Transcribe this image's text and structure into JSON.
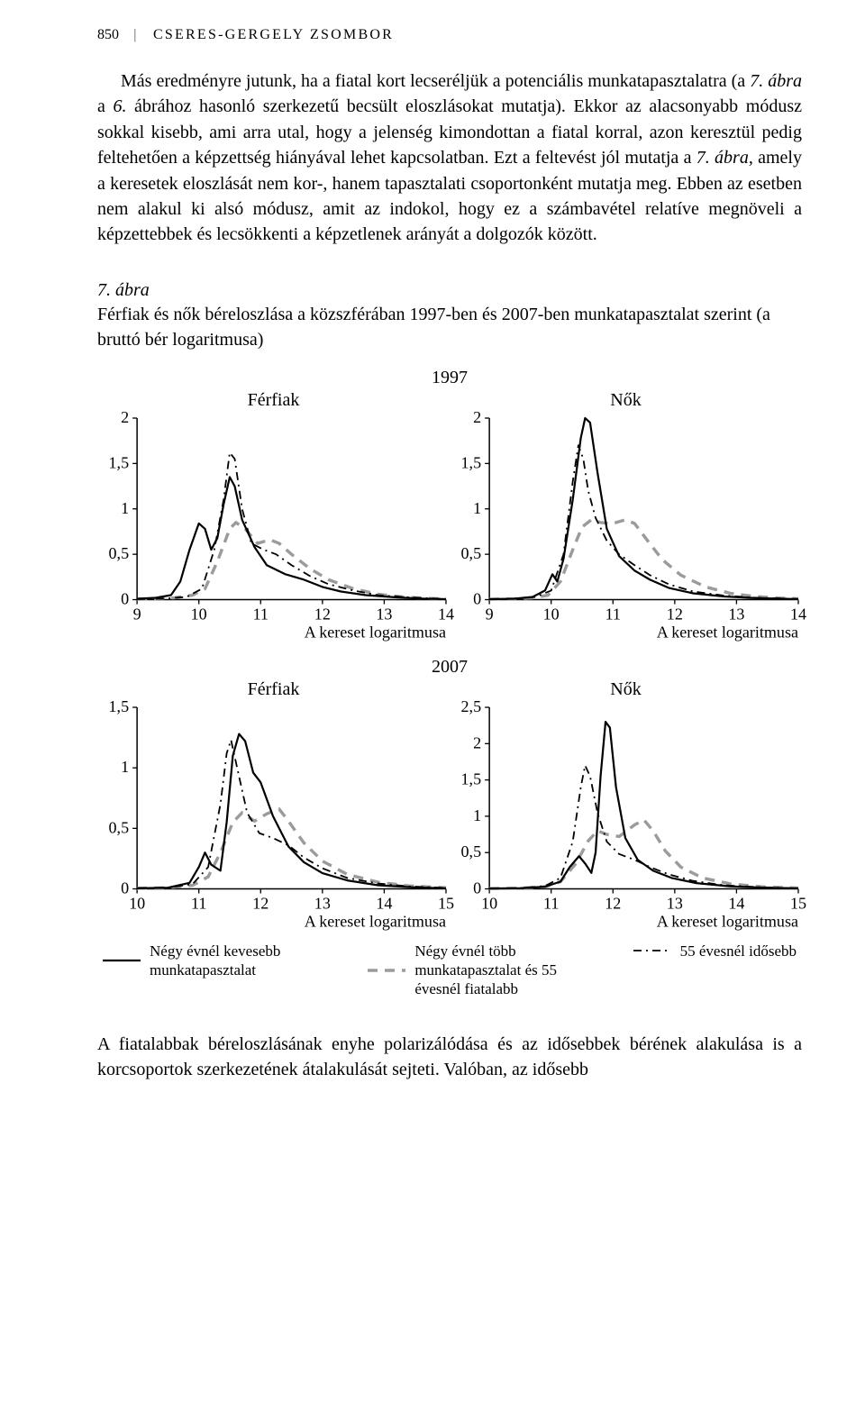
{
  "page": {
    "number": "850",
    "author": "CSERES-GERGELY ZSOMBOR"
  },
  "para1_a": "Más eredményre jutunk, ha a fiatal kort lecseréljük a potenciális munkatapasztalatra (a ",
  "para1_b": "7. ábra",
  "para1_c": " a ",
  "para1_d": "6.",
  "para1_e": " ábrához hasonló szerkezetű becsült eloszlásokat mutatja). Ekkor az alacsonyabb módusz sokkal kisebb, ami arra utal, hogy a jelenség kimondottan a fiatal korral, azon keresztül pedig feltehetően a képzettség hiányával lehet kapcsolatban. Ezt a feltevést jól mutatja a ",
  "para1_f": "7. ábra,",
  "para1_g": " amely a keresetek eloszlását nem kor-, hanem tapasztalati csoportonként mutatja meg. Ebben az esetben nem alakul ki alsó módusz, amit az indokol, hogy ez a számbavétel relatíve megnöveli a képzettebbek és lecsökkenti a képzetlenek arányát a dolgozók között.",
  "figure": {
    "caption_head": "7. ábra",
    "caption_body": "Férfiak és nők béreloszlása a közszférában 1997-ben és 2007-ben munkatapasztalat szerint (a bruttó bér logaritmusa)",
    "year1": "1997",
    "year2": "2007",
    "col_men": "Férfiak",
    "col_women": "Nők",
    "xlabel": "A kereset logaritmusa",
    "style": {
      "axis_color": "#000000",
      "tick_color": "#000000",
      "tick_font": 18,
      "series_solid": {
        "color": "#000000",
        "width": 2.2,
        "dash": ""
      },
      "series_dash": {
        "color": "#9b9b9b",
        "width": 3.4,
        "dash": "11,8"
      },
      "series_dashdot": {
        "color": "#000000",
        "width": 1.8,
        "dash": "9,5,2,5"
      }
    },
    "panels": {
      "men1997": {
        "xlim": [
          9,
          14
        ],
        "xticks": [
          9,
          10,
          11,
          12,
          13,
          14
        ],
        "ylim": [
          0,
          2.0
        ],
        "yticks": [
          0,
          0.5,
          1.0,
          1.5,
          2.0
        ],
        "solid": [
          [
            9.0,
            0.01
          ],
          [
            9.3,
            0.02
          ],
          [
            9.55,
            0.05
          ],
          [
            9.7,
            0.2
          ],
          [
            9.85,
            0.55
          ],
          [
            10.0,
            0.84
          ],
          [
            10.1,
            0.78
          ],
          [
            10.2,
            0.55
          ],
          [
            10.3,
            0.68
          ],
          [
            10.4,
            1.05
          ],
          [
            10.5,
            1.35
          ],
          [
            10.58,
            1.25
          ],
          [
            10.7,
            0.88
          ],
          [
            10.9,
            0.58
          ],
          [
            11.1,
            0.38
          ],
          [
            11.4,
            0.28
          ],
          [
            11.7,
            0.22
          ],
          [
            12.0,
            0.14
          ],
          [
            12.3,
            0.09
          ],
          [
            12.7,
            0.05
          ],
          [
            13.2,
            0.025
          ],
          [
            13.6,
            0.012
          ],
          [
            14.0,
            0.005
          ]
        ],
        "dash": [
          [
            9.0,
            0.005
          ],
          [
            9.3,
            0.01
          ],
          [
            9.6,
            0.02
          ],
          [
            9.9,
            0.05
          ],
          [
            10.1,
            0.12
          ],
          [
            10.3,
            0.42
          ],
          [
            10.5,
            0.78
          ],
          [
            10.6,
            0.85
          ],
          [
            10.75,
            0.78
          ],
          [
            10.95,
            0.62
          ],
          [
            11.15,
            0.66
          ],
          [
            11.3,
            0.62
          ],
          [
            11.5,
            0.5
          ],
          [
            11.8,
            0.34
          ],
          [
            12.1,
            0.22
          ],
          [
            12.5,
            0.12
          ],
          [
            12.9,
            0.06
          ],
          [
            13.3,
            0.03
          ],
          [
            13.7,
            0.015
          ],
          [
            14.0,
            0.008
          ]
        ],
        "dashdot": [
          [
            9.0,
            0.005
          ],
          [
            9.4,
            0.01
          ],
          [
            9.8,
            0.03
          ],
          [
            10.05,
            0.12
          ],
          [
            10.25,
            0.55
          ],
          [
            10.4,
            1.1
          ],
          [
            10.5,
            1.62
          ],
          [
            10.58,
            1.55
          ],
          [
            10.7,
            1.0
          ],
          [
            10.85,
            0.62
          ],
          [
            11.05,
            0.55
          ],
          [
            11.25,
            0.5
          ],
          [
            11.5,
            0.38
          ],
          [
            11.8,
            0.26
          ],
          [
            12.1,
            0.17
          ],
          [
            12.5,
            0.1
          ],
          [
            12.9,
            0.05
          ],
          [
            13.3,
            0.03
          ],
          [
            13.7,
            0.015
          ],
          [
            14.0,
            0.008
          ]
        ]
      },
      "women1997": {
        "xlim": [
          9,
          14
        ],
        "xticks": [
          9,
          10,
          11,
          12,
          13,
          14
        ],
        "ylim": [
          0,
          2.0
        ],
        "yticks": [
          0,
          0.5,
          1.0,
          1.5,
          2.0
        ],
        "solid": [
          [
            9.0,
            0.005
          ],
          [
            9.4,
            0.01
          ],
          [
            9.7,
            0.03
          ],
          [
            9.9,
            0.1
          ],
          [
            10.02,
            0.28
          ],
          [
            10.1,
            0.2
          ],
          [
            10.2,
            0.45
          ],
          [
            10.35,
            1.1
          ],
          [
            10.48,
            1.78
          ],
          [
            10.55,
            2.0
          ],
          [
            10.63,
            1.95
          ],
          [
            10.75,
            1.4
          ],
          [
            10.9,
            0.78
          ],
          [
            11.1,
            0.48
          ],
          [
            11.35,
            0.32
          ],
          [
            11.6,
            0.22
          ],
          [
            11.9,
            0.13
          ],
          [
            12.3,
            0.07
          ],
          [
            12.8,
            0.035
          ],
          [
            13.3,
            0.018
          ],
          [
            14.0,
            0.006
          ]
        ],
        "dash": [
          [
            9.0,
            0.005
          ],
          [
            9.4,
            0.01
          ],
          [
            9.7,
            0.02
          ],
          [
            9.95,
            0.05
          ],
          [
            10.15,
            0.2
          ],
          [
            10.35,
            0.55
          ],
          [
            10.5,
            0.8
          ],
          [
            10.65,
            0.88
          ],
          [
            10.8,
            0.85
          ],
          [
            11.0,
            0.84
          ],
          [
            11.2,
            0.88
          ],
          [
            11.35,
            0.84
          ],
          [
            11.55,
            0.66
          ],
          [
            11.8,
            0.44
          ],
          [
            12.1,
            0.27
          ],
          [
            12.5,
            0.14
          ],
          [
            12.9,
            0.07
          ],
          [
            13.3,
            0.035
          ],
          [
            13.7,
            0.018
          ],
          [
            14.0,
            0.01
          ]
        ],
        "dashdot": [
          [
            9.0,
            0.005
          ],
          [
            9.4,
            0.01
          ],
          [
            9.75,
            0.03
          ],
          [
            10.0,
            0.1
          ],
          [
            10.2,
            0.5
          ],
          [
            10.35,
            1.3
          ],
          [
            10.44,
            1.7
          ],
          [
            10.52,
            1.55
          ],
          [
            10.6,
            1.2
          ],
          [
            10.72,
            0.9
          ],
          [
            10.9,
            0.65
          ],
          [
            11.1,
            0.5
          ],
          [
            11.35,
            0.38
          ],
          [
            11.6,
            0.27
          ],
          [
            11.9,
            0.17
          ],
          [
            12.3,
            0.09
          ],
          [
            12.8,
            0.045
          ],
          [
            13.3,
            0.022
          ],
          [
            14.0,
            0.008
          ]
        ]
      },
      "men2007": {
        "xlim": [
          10,
          15
        ],
        "xticks": [
          10,
          11,
          12,
          13,
          14,
          15
        ],
        "ylim": [
          0,
          1.5
        ],
        "yticks": [
          0,
          0.5,
          1.0,
          1.5
        ],
        "solid": [
          [
            10.0,
            0.005
          ],
          [
            10.5,
            0.01
          ],
          [
            10.85,
            0.05
          ],
          [
            11.0,
            0.18
          ],
          [
            11.1,
            0.3
          ],
          [
            11.2,
            0.2
          ],
          [
            11.35,
            0.15
          ],
          [
            11.45,
            0.55
          ],
          [
            11.55,
            1.1
          ],
          [
            11.65,
            1.28
          ],
          [
            11.75,
            1.22
          ],
          [
            11.88,
            0.96
          ],
          [
            12.0,
            0.88
          ],
          [
            12.2,
            0.6
          ],
          [
            12.45,
            0.35
          ],
          [
            12.7,
            0.22
          ],
          [
            13.0,
            0.13
          ],
          [
            13.4,
            0.07
          ],
          [
            13.9,
            0.03
          ],
          [
            14.5,
            0.012
          ],
          [
            15.0,
            0.005
          ]
        ],
        "dash": [
          [
            10.0,
            0.005
          ],
          [
            10.5,
            0.01
          ],
          [
            10.9,
            0.03
          ],
          [
            11.15,
            0.1
          ],
          [
            11.35,
            0.3
          ],
          [
            11.55,
            0.55
          ],
          [
            11.7,
            0.63
          ],
          [
            11.9,
            0.56
          ],
          [
            12.1,
            0.62
          ],
          [
            12.3,
            0.66
          ],
          [
            12.45,
            0.56
          ],
          [
            12.7,
            0.38
          ],
          [
            13.0,
            0.23
          ],
          [
            13.4,
            0.12
          ],
          [
            13.9,
            0.055
          ],
          [
            14.4,
            0.025
          ],
          [
            15.0,
            0.01
          ]
        ],
        "dashdot": [
          [
            10.0,
            0.005
          ],
          [
            10.5,
            0.01
          ],
          [
            10.9,
            0.04
          ],
          [
            11.15,
            0.18
          ],
          [
            11.35,
            0.7
          ],
          [
            11.45,
            1.12
          ],
          [
            11.52,
            1.23
          ],
          [
            11.62,
            1.0
          ],
          [
            11.78,
            0.63
          ],
          [
            11.98,
            0.46
          ],
          [
            12.2,
            0.42
          ],
          [
            12.45,
            0.36
          ],
          [
            12.7,
            0.26
          ],
          [
            13.0,
            0.17
          ],
          [
            13.4,
            0.09
          ],
          [
            13.9,
            0.045
          ],
          [
            14.4,
            0.02
          ],
          [
            15.0,
            0.008
          ]
        ]
      },
      "women2007": {
        "xlim": [
          10,
          15
        ],
        "xticks": [
          10,
          11,
          12,
          13,
          14,
          15
        ],
        "ylim": [
          0,
          2.5
        ],
        "yticks": [
          0,
          0.5,
          1.0,
          1.5,
          2.0,
          2.5
        ],
        "solid": [
          [
            10.0,
            0.005
          ],
          [
            10.5,
            0.01
          ],
          [
            10.9,
            0.03
          ],
          [
            11.15,
            0.1
          ],
          [
            11.3,
            0.3
          ],
          [
            11.45,
            0.45
          ],
          [
            11.55,
            0.35
          ],
          [
            11.65,
            0.22
          ],
          [
            11.72,
            0.5
          ],
          [
            11.8,
            1.55
          ],
          [
            11.88,
            2.3
          ],
          [
            11.95,
            2.22
          ],
          [
            12.05,
            1.4
          ],
          [
            12.2,
            0.7
          ],
          [
            12.4,
            0.4
          ],
          [
            12.65,
            0.25
          ],
          [
            12.95,
            0.15
          ],
          [
            13.35,
            0.08
          ],
          [
            13.9,
            0.035
          ],
          [
            14.5,
            0.015
          ],
          [
            15.0,
            0.006
          ]
        ],
        "dash": [
          [
            10.0,
            0.005
          ],
          [
            10.5,
            0.01
          ],
          [
            10.9,
            0.03
          ],
          [
            11.15,
            0.1
          ],
          [
            11.4,
            0.35
          ],
          [
            11.6,
            0.66
          ],
          [
            11.75,
            0.8
          ],
          [
            11.9,
            0.75
          ],
          [
            12.1,
            0.72
          ],
          [
            12.35,
            0.88
          ],
          [
            12.5,
            0.95
          ],
          [
            12.65,
            0.8
          ],
          [
            12.85,
            0.52
          ],
          [
            13.1,
            0.3
          ],
          [
            13.45,
            0.15
          ],
          [
            13.9,
            0.07
          ],
          [
            14.4,
            0.03
          ],
          [
            15.0,
            0.012
          ]
        ],
        "dashdot": [
          [
            10.0,
            0.005
          ],
          [
            10.5,
            0.01
          ],
          [
            10.9,
            0.04
          ],
          [
            11.15,
            0.15
          ],
          [
            11.35,
            0.65
          ],
          [
            11.48,
            1.4
          ],
          [
            11.55,
            1.7
          ],
          [
            11.63,
            1.55
          ],
          [
            11.75,
            1.05
          ],
          [
            11.9,
            0.65
          ],
          [
            12.1,
            0.48
          ],
          [
            12.35,
            0.4
          ],
          [
            12.6,
            0.3
          ],
          [
            12.9,
            0.2
          ],
          [
            13.3,
            0.11
          ],
          [
            13.8,
            0.05
          ],
          [
            14.4,
            0.022
          ],
          [
            15.0,
            0.009
          ]
        ]
      }
    },
    "legend": {
      "l1": "Négy évnél kevesebb munkatapasztalat",
      "l2": "Négy évnél több munkatapasztalat és 55 évesnél fiatalabb",
      "l3": "55 évesnél idősebb"
    }
  },
  "para2": "A fiatalabbak béreloszlásának enyhe polarizálódása és az idősebbek bérének alakulása is a korcsoportok szerkezetének átalakulását sejteti. Valóban, az idősebb"
}
